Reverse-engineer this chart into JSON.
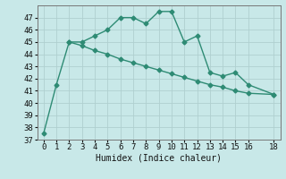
{
  "line1_x": [
    0,
    1,
    2,
    3,
    4,
    5,
    6,
    7,
    8,
    9,
    10,
    11,
    12,
    13,
    14,
    15,
    16,
    18
  ],
  "line1_y": [
    37.5,
    41.5,
    45.0,
    45.0,
    45.5,
    46.0,
    47.0,
    47.0,
    46.5,
    47.5,
    47.5,
    45.0,
    45.5,
    42.5,
    42.2,
    42.5,
    41.5,
    40.7
  ],
  "line2_x": [
    2,
    3,
    4,
    5,
    6,
    7,
    8,
    9,
    10,
    11,
    12,
    13,
    14,
    15,
    16,
    18
  ],
  "line2_y": [
    45.0,
    44.7,
    44.3,
    44.0,
    43.6,
    43.3,
    43.0,
    42.7,
    42.4,
    42.1,
    41.8,
    41.5,
    41.3,
    41.0,
    40.8,
    40.7
  ],
  "color": "#2e8b74",
  "bg_color": "#c8e8e8",
  "grid_color": "#afd0d0",
  "xlabel": "Humidex (Indice chaleur)",
  "ylim": [
    37,
    48
  ],
  "xlim": [
    -0.5,
    18.5
  ],
  "yticks": [
    37,
    38,
    39,
    40,
    41,
    42,
    43,
    44,
    45,
    46,
    47
  ],
  "xticks": [
    0,
    1,
    2,
    3,
    4,
    5,
    6,
    7,
    8,
    9,
    10,
    11,
    12,
    13,
    14,
    15,
    16,
    18
  ],
  "marker": "D",
  "markersize": 2.5,
  "linewidth": 1.0,
  "xlabel_fontsize": 7,
  "tick_fontsize": 6.5
}
